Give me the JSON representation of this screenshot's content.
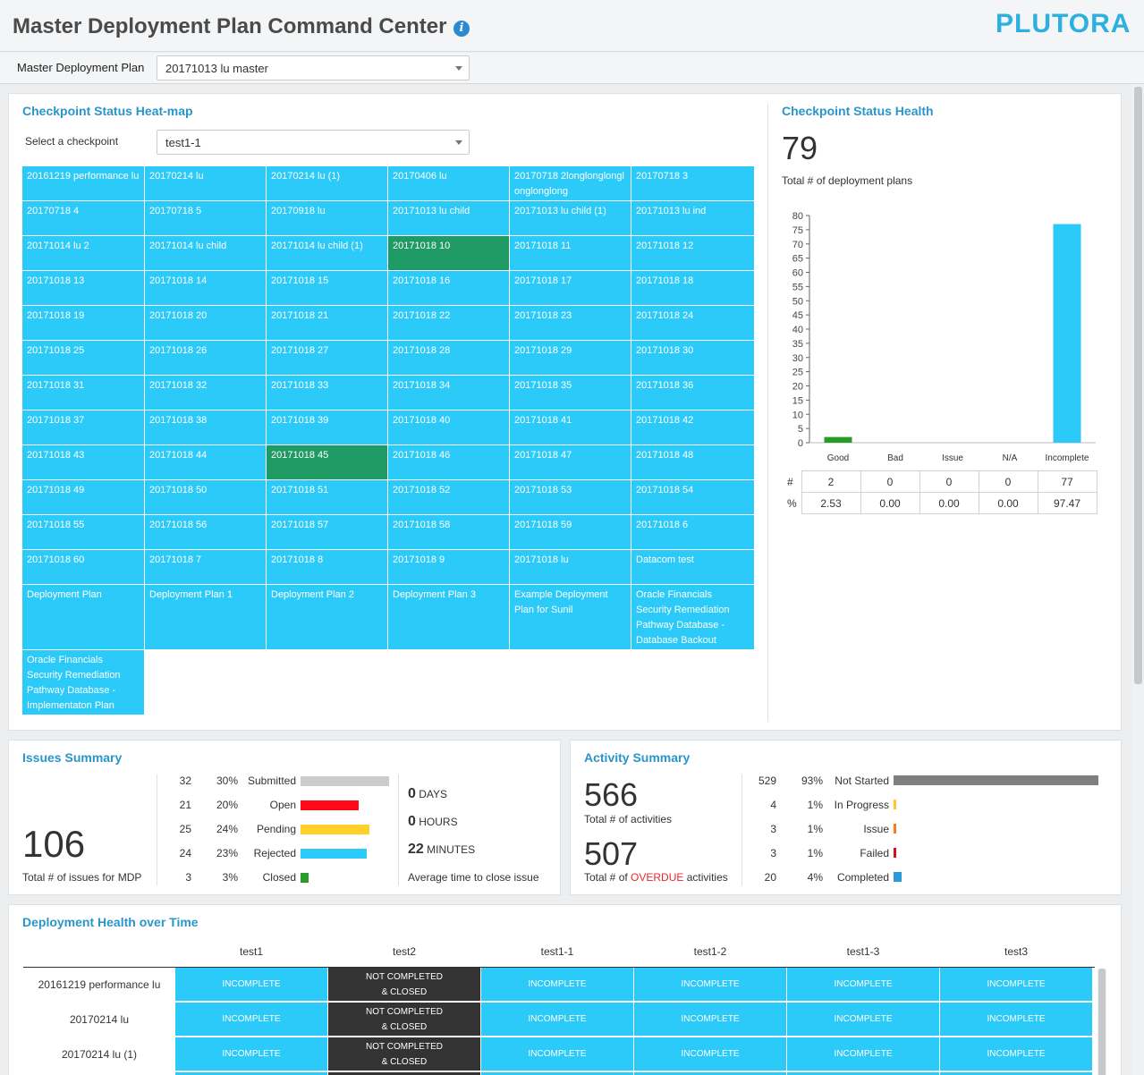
{
  "header": {
    "title": "Master Deployment Plan Command Center",
    "info_icon": "info-icon",
    "logo_text": "PLUTORA"
  },
  "mdp": {
    "label": "Master Deployment Plan",
    "selected": "20171013 lu master"
  },
  "heatmap": {
    "title": "Checkpoint Status Heat-map",
    "select_label": "Select a checkpoint",
    "selected": "test1-1",
    "cells": [
      {
        "text": "20161219 performance lu",
        "status": "blue"
      },
      {
        "text": "20170214 lu",
        "status": "blue"
      },
      {
        "text": "20170214 lu (1)",
        "status": "blue"
      },
      {
        "text": "20170406 lu",
        "status": "blue"
      },
      {
        "text": "20170718 2longlonglonglonglonglong",
        "status": "blue"
      },
      {
        "text": "20170718 3",
        "status": "blue"
      },
      {
        "text": "20170718 4",
        "status": "blue"
      },
      {
        "text": "20170718 5",
        "status": "blue"
      },
      {
        "text": "20170918 lu",
        "status": "blue"
      },
      {
        "text": "20171013 lu child",
        "status": "blue"
      },
      {
        "text": "20171013 lu child (1)",
        "status": "blue"
      },
      {
        "text": "20171013 lu ind",
        "status": "blue"
      },
      {
        "text": "20171014 lu 2",
        "status": "blue"
      },
      {
        "text": "20171014 lu child",
        "status": "blue"
      },
      {
        "text": "20171014 lu child (1)",
        "status": "blue"
      },
      {
        "text": "20171018 10",
        "status": "green"
      },
      {
        "text": "20171018 11",
        "status": "blue"
      },
      {
        "text": "20171018 12",
        "status": "blue"
      },
      {
        "text": "20171018 13",
        "status": "blue"
      },
      {
        "text": "20171018 14",
        "status": "blue"
      },
      {
        "text": "20171018 15",
        "status": "blue"
      },
      {
        "text": "20171018 16",
        "status": "blue"
      },
      {
        "text": "20171018 17",
        "status": "blue"
      },
      {
        "text": "20171018 18",
        "status": "blue"
      },
      {
        "text": "20171018 19",
        "status": "blue"
      },
      {
        "text": "20171018 20",
        "status": "blue"
      },
      {
        "text": "20171018 21",
        "status": "blue"
      },
      {
        "text": "20171018 22",
        "status": "blue"
      },
      {
        "text": "20171018 23",
        "status": "blue"
      },
      {
        "text": "20171018 24",
        "status": "blue"
      },
      {
        "text": "20171018 25",
        "status": "blue"
      },
      {
        "text": "20171018 26",
        "status": "blue"
      },
      {
        "text": "20171018 27",
        "status": "blue"
      },
      {
        "text": "20171018 28",
        "status": "blue"
      },
      {
        "text": "20171018 29",
        "status": "blue"
      },
      {
        "text": "20171018 30",
        "status": "blue"
      },
      {
        "text": "20171018 31",
        "status": "blue"
      },
      {
        "text": "20171018 32",
        "status": "blue"
      },
      {
        "text": "20171018 33",
        "status": "blue"
      },
      {
        "text": "20171018 34",
        "status": "blue"
      },
      {
        "text": "20171018 35",
        "status": "blue"
      },
      {
        "text": "20171018 36",
        "status": "blue"
      },
      {
        "text": "20171018 37",
        "status": "blue"
      },
      {
        "text": "20171018 38",
        "status": "blue"
      },
      {
        "text": "20171018 39",
        "status": "blue"
      },
      {
        "text": "20171018 40",
        "status": "blue"
      },
      {
        "text": "20171018 41",
        "status": "blue"
      },
      {
        "text": "20171018 42",
        "status": "blue"
      },
      {
        "text": "20171018 43",
        "status": "blue"
      },
      {
        "text": "20171018 44",
        "status": "blue"
      },
      {
        "text": "20171018 45",
        "status": "green"
      },
      {
        "text": "20171018 46",
        "status": "blue"
      },
      {
        "text": "20171018 47",
        "status": "blue"
      },
      {
        "text": "20171018 48",
        "status": "blue"
      },
      {
        "text": "20171018 49",
        "status": "blue"
      },
      {
        "text": "20171018 50",
        "status": "blue"
      },
      {
        "text": "20171018 51",
        "status": "blue"
      },
      {
        "text": "20171018 52",
        "status": "blue"
      },
      {
        "text": "20171018 53",
        "status": "blue"
      },
      {
        "text": "20171018 54",
        "status": "blue"
      },
      {
        "text": "20171018 55",
        "status": "blue"
      },
      {
        "text": "20171018 56",
        "status": "blue"
      },
      {
        "text": "20171018 57",
        "status": "blue"
      },
      {
        "text": "20171018 58",
        "status": "blue"
      },
      {
        "text": "20171018 59",
        "status": "blue"
      },
      {
        "text": "20171018 6",
        "status": "blue"
      },
      {
        "text": "20171018 60",
        "status": "blue"
      },
      {
        "text": "20171018 7",
        "status": "blue"
      },
      {
        "text": "20171018 8",
        "status": "blue"
      },
      {
        "text": "20171018 9",
        "status": "blue"
      },
      {
        "text": "20171018 lu",
        "status": "blue"
      },
      {
        "text": "Datacom test",
        "status": "blue"
      },
      {
        "text": "Deployment Plan",
        "status": "blue"
      },
      {
        "text": "Deployment Plan 1",
        "status": "blue"
      },
      {
        "text": "Deployment Plan 2",
        "status": "blue"
      },
      {
        "text": "Deployment Plan 3",
        "status": "blue"
      },
      {
        "text": "Example Deployment Plan for Sunil",
        "status": "blue"
      },
      {
        "text": "Oracle Financials Security Remediation Pathway Database - Database Backout",
        "status": "blue"
      },
      {
        "text": "Oracle Financials Security Remediation Pathway Database - Implementaton Plan",
        "status": "blue"
      }
    ]
  },
  "health": {
    "title": "Checkpoint Status Health",
    "total": "79",
    "total_label": "Total # of deployment plans",
    "count_label": "#",
    "pct_label": "%",
    "columns": [
      {
        "name": "Good",
        "count": "2",
        "pct": "2.53"
      },
      {
        "name": "Bad",
        "count": "0",
        "pct": "0.00"
      },
      {
        "name": "Issue",
        "count": "0",
        "pct": "0.00"
      },
      {
        "name": "N/A",
        "count": "0",
        "pct": "0.00"
      },
      {
        "name": "Incomplete",
        "count": "77",
        "pct": "97.47"
      }
    ]
  },
  "chart_data": {
    "type": "bar",
    "categories": [
      "Good",
      "Bad",
      "Issue",
      "N/A",
      "Incomplete"
    ],
    "values": [
      2,
      0,
      0,
      0,
      77
    ],
    "colors": [
      "#2a9a2a",
      "#2bcaf8",
      "#2bcaf8",
      "#2bcaf8",
      "#2bcaf8"
    ],
    "ylim": [
      0,
      80
    ],
    "yticks": [
      0,
      5,
      10,
      15,
      20,
      25,
      30,
      35,
      40,
      45,
      50,
      55,
      60,
      65,
      70,
      75,
      80
    ],
    "title": "",
    "xlabel": "",
    "ylabel": "",
    "grid": false
  },
  "issues": {
    "title": "Issues Summary",
    "total": "106",
    "total_label": "Total # of issues for MDP",
    "rows": [
      {
        "count": "32",
        "pct": "30%",
        "label": "Submitted",
        "value": 32,
        "color": "#cccccc"
      },
      {
        "count": "21",
        "pct": "20%",
        "label": "Open",
        "value": 21,
        "color": "#ff0a16"
      },
      {
        "count": "25",
        "pct": "24%",
        "label": "Pending",
        "value": 25,
        "color": "#ffd02a"
      },
      {
        "count": "24",
        "pct": "23%",
        "label": "Rejected",
        "value": 24,
        "color": "#2bcaf8"
      },
      {
        "count": "3",
        "pct": "3%",
        "label": "Closed",
        "value": 3,
        "color": "#2a9a2a"
      }
    ],
    "time": {
      "days_value": "0",
      "days_unit": "DAYS",
      "hours_value": "0",
      "hours_unit": "HOURS",
      "minutes_value": "22",
      "minutes_unit": "MINUTES",
      "label": "Average time to close issue"
    }
  },
  "activity": {
    "title": "Activity Summary",
    "total": "566",
    "total_label": "Total # of activities",
    "overdue": "507",
    "overdue_label_pre": "Total # of",
    "overdue_label_word": "OVERDUE",
    "overdue_label_post": "activities",
    "overdue_color": "#e8262f",
    "rows": [
      {
        "count": "529",
        "pct": "93%",
        "label": "Not Started",
        "value": 529,
        "color": "#7f7f7f"
      },
      {
        "count": "4",
        "pct": "1%",
        "label": "In Progress",
        "value": 4,
        "color": "#ffc72a"
      },
      {
        "count": "3",
        "pct": "1%",
        "label": "Issue",
        "value": 3,
        "color": "#ff7a1a"
      },
      {
        "count": "3",
        "pct": "1%",
        "label": "Failed",
        "value": 3,
        "color": "#d0101a"
      },
      {
        "count": "20",
        "pct": "4%",
        "label": "Completed",
        "value": 20,
        "color": "#2a9ad8"
      }
    ]
  },
  "deployment_health": {
    "title": "Deployment Health over Time",
    "columns": [
      "test1",
      "test2",
      "test1-1",
      "test1-2",
      "test1-3",
      "test3"
    ],
    "rows": [
      {
        "label": "20161219 performance lu",
        "cells": [
          {
            "status": "INCOMPLETE"
          },
          {
            "status": "NOT COMPLETED & CLOSED",
            "line1": "NOT COMPLETED",
            "line2": "& CLOSED"
          },
          {
            "status": "INCOMPLETE"
          },
          {
            "status": "INCOMPLETE"
          },
          {
            "status": "INCOMPLETE"
          },
          {
            "status": "INCOMPLETE"
          }
        ]
      },
      {
        "label": "20170214 lu",
        "cells": [
          {
            "status": "INCOMPLETE"
          },
          {
            "status": "NOT COMPLETED & CLOSED",
            "line1": "NOT COMPLETED",
            "line2": "& CLOSED"
          },
          {
            "status": "INCOMPLETE"
          },
          {
            "status": "INCOMPLETE"
          },
          {
            "status": "INCOMPLETE"
          },
          {
            "status": "INCOMPLETE"
          }
        ]
      },
      {
        "label": "20170214 lu (1)",
        "cells": [
          {
            "status": "INCOMPLETE"
          },
          {
            "status": "NOT COMPLETED & CLOSED",
            "line1": "NOT COMPLETED",
            "line2": "& CLOSED"
          },
          {
            "status": "INCOMPLETE"
          },
          {
            "status": "INCOMPLETE"
          },
          {
            "status": "INCOMPLETE"
          },
          {
            "status": "INCOMPLETE"
          }
        ]
      }
    ]
  }
}
